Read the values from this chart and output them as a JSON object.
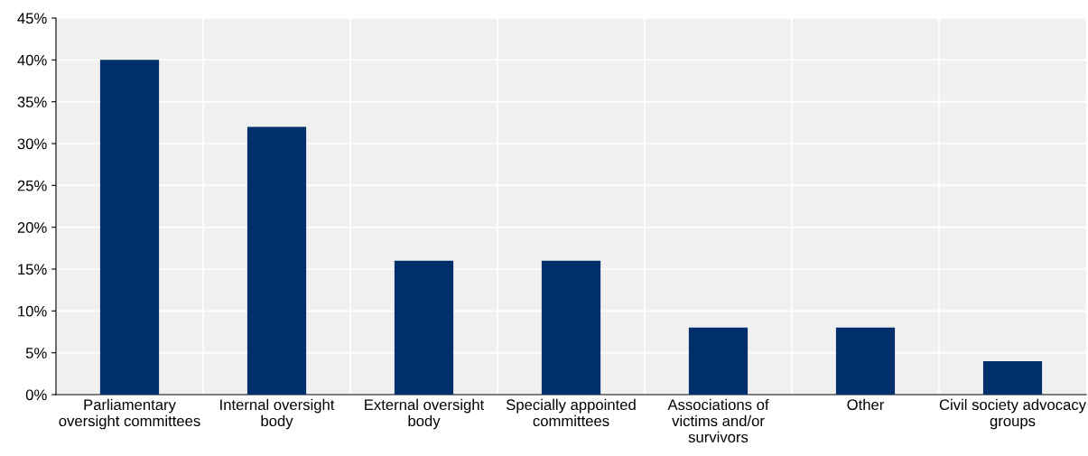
{
  "chart_data": {
    "type": "bar",
    "categories": [
      "Parliamentary\noversight committees",
      "Internal oversight\nbody",
      "External oversight\nbody",
      "Specially appointed\ncommittees",
      "Associations of\nvictims and/or\nsurvivors",
      "Other",
      "Civil society advocacy\ngroups"
    ],
    "values": [
      40,
      32,
      16,
      16,
      8,
      8,
      4
    ],
    "color": "#002f6c",
    "ylim": [
      0,
      45
    ],
    "yticks": [
      {
        "value": 0,
        "label": "0%"
      },
      {
        "value": 5,
        "label": "5%"
      },
      {
        "value": 10,
        "label": "10%"
      },
      {
        "value": 15,
        "label": "15%"
      },
      {
        "value": 20,
        "label": "20%"
      },
      {
        "value": 25,
        "label": "25%"
      },
      {
        "value": 30,
        "label": "30%"
      },
      {
        "value": 35,
        "label": "35%"
      },
      {
        "value": 40,
        "label": "40%"
      },
      {
        "value": 45,
        "label": "45%"
      }
    ],
    "grid": true
  }
}
